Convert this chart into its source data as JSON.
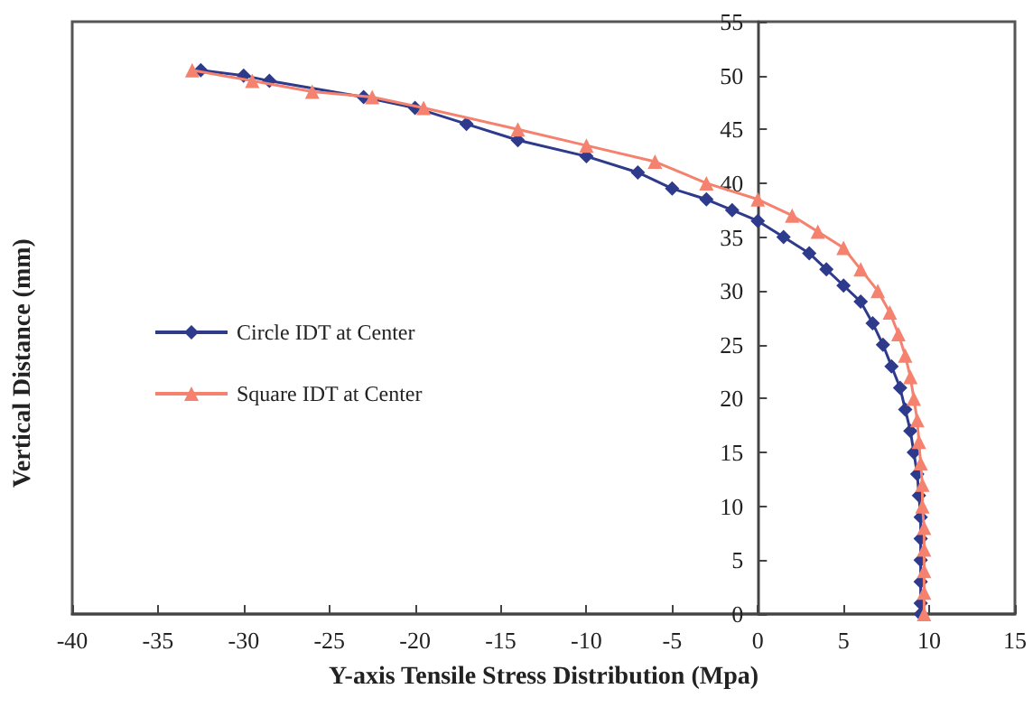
{
  "chart_data": {
    "type": "line",
    "xlabel": "Y-axis Tensile Stress Distribution (Mpa)",
    "ylabel": "Vertical Distance (mm)",
    "xlim": [
      -40,
      15
    ],
    "xticks": [
      -40,
      -35,
      -30,
      -25,
      -20,
      -15,
      -10,
      -5,
      0,
      5,
      10,
      15
    ],
    "ylim": [
      0,
      55
    ],
    "yticks": [
      0,
      5,
      10,
      15,
      20,
      25,
      30,
      35,
      40,
      45,
      50,
      55
    ],
    "grid": false,
    "legend": "left",
    "series": [
      {
        "name": "Circle IDT at Center",
        "color": "#2e3a8c",
        "marker": "diamond",
        "x": [
          -32.5,
          -30,
          -28.5,
          -23,
          -20,
          -17,
          -14,
          -10,
          -7,
          -5,
          -3,
          -1.5,
          0,
          1.5,
          3,
          4,
          5,
          6,
          6.7,
          7.3,
          7.8,
          8.3,
          8.6,
          8.9,
          9.1,
          9.3,
          9.4,
          9.5,
          9.5,
          9.5,
          9.5,
          9.5,
          9.5
        ],
        "values": [
          50.5,
          50,
          49.5,
          48,
          47,
          45.5,
          44,
          42.5,
          41,
          39.5,
          38.5,
          37.5,
          36.5,
          35,
          33.5,
          32,
          30.5,
          29,
          27,
          25,
          23,
          21,
          19,
          17,
          15,
          13,
          11,
          9,
          7,
          5,
          3,
          1,
          0
        ]
      },
      {
        "name": "Square IDT at Center",
        "color": "#f4826e",
        "marker": "triangle",
        "x": [
          -33,
          -29.5,
          -26,
          -22.5,
          -19.5,
          -14,
          -10,
          -6,
          -3,
          0,
          2,
          3.5,
          5,
          6,
          7,
          7.7,
          8.2,
          8.6,
          8.9,
          9.1,
          9.3,
          9.4,
          9.5,
          9.6,
          9.6,
          9.7,
          9.7,
          9.7,
          9.7,
          9.7
        ],
        "values": [
          50.5,
          49.5,
          48.5,
          48,
          47,
          45,
          43.5,
          42,
          40,
          38.5,
          37,
          35.5,
          34,
          32,
          30,
          28,
          26,
          24,
          22,
          20,
          18,
          16,
          14,
          12,
          10,
          8,
          6,
          4,
          2,
          0
        ]
      }
    ]
  }
}
